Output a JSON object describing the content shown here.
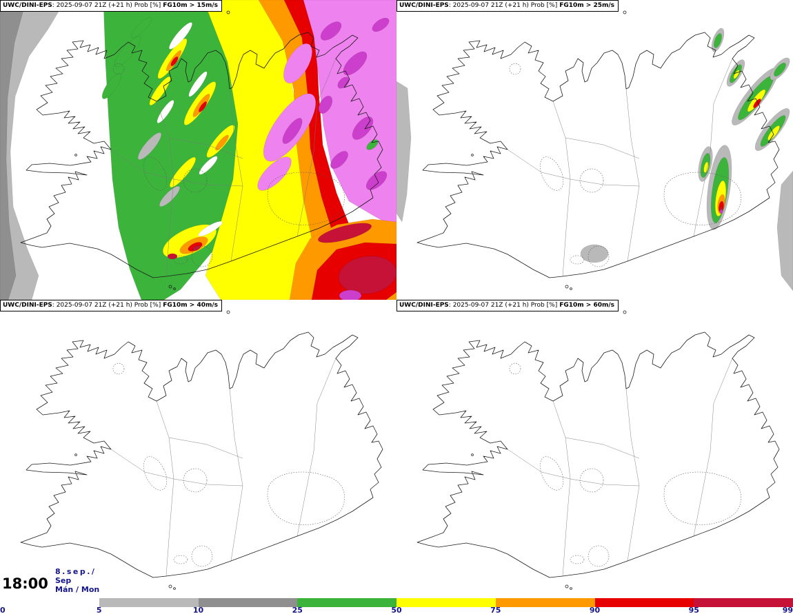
{
  "panels": [
    {
      "model": "UWC/DINI-EPS",
      "run_info": ": 2025-09-07 21Z (+21 h) Prob [%]",
      "threshold": "FG10m > 15m/s"
    },
    {
      "model": "UWC/DINI-EPS",
      "run_info": ": 2025-09-07 21Z (+21 h) Prob [%]",
      "threshold": "FG10m > 25m/s"
    },
    {
      "model": "UWC/DINI-EPS",
      "run_info": ": 2025-09-07 21Z (+21 h) Prob [%]",
      "threshold": "FG10m > 40m/s"
    },
    {
      "model": "UWC/DINI-EPS",
      "run_info": ": 2025-09-07 21Z (+21 h) Prob [%]",
      "threshold": "FG10m > 60m/s"
    }
  ],
  "footer": {
    "time": "18:00",
    "date_line1": "8.sep./",
    "date_line2": "Sep",
    "date_line3": "Mán / Mon"
  },
  "colorbar": {
    "labels": [
      "0",
      "5",
      "10",
      "25",
      "50",
      "75",
      "90",
      "95",
      "99"
    ],
    "segment_colors": [
      "#ffffff",
      "#b9b9b9",
      "#8f8f8f",
      "#3cb43c",
      "#ffff00",
      "#ff9900",
      "#e60000",
      "#c51236"
    ]
  },
  "palette": {
    "gray_light": "#b9b9b9",
    "gray_dark": "#8f8f8f",
    "green": "#3cb43c",
    "yellow": "#ffff00",
    "orange": "#ff9900",
    "red": "#e60000",
    "crimson": "#c51236",
    "violet": "#ee82ee",
    "magenta": "#cc3fcc",
    "white": "#ffffff",
    "label": "#14148c"
  }
}
